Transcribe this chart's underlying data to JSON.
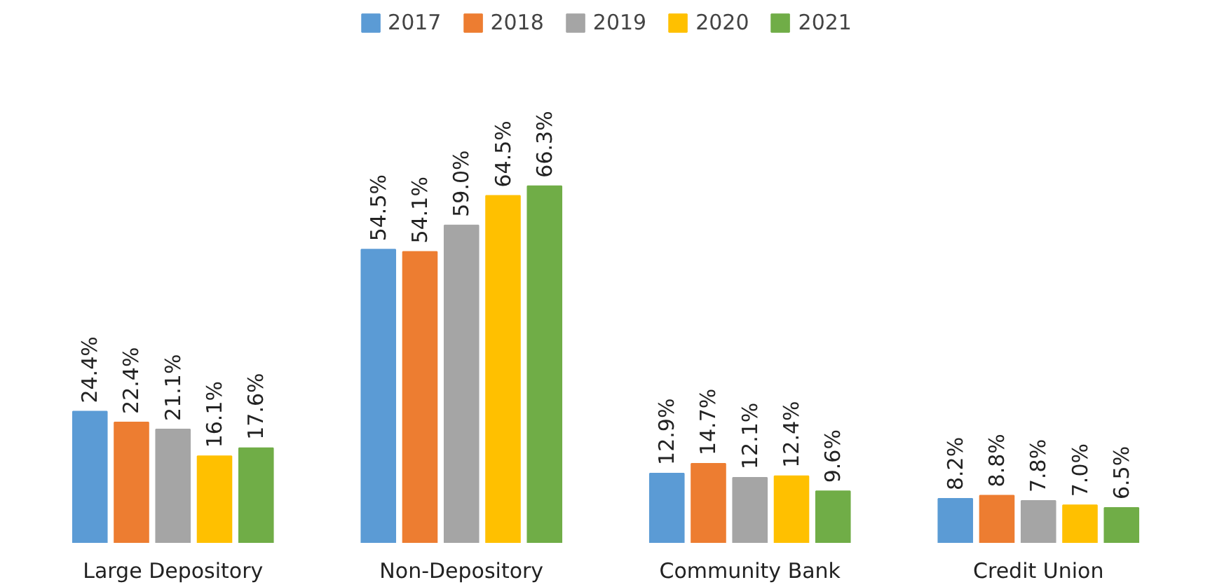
{
  "chart_data": {
    "type": "bar",
    "categories": [
      "Large Depository",
      "Non-Depository",
      "Community Bank",
      "Credit Union"
    ],
    "series": [
      {
        "name": "2017",
        "color": "#5b9bd5",
        "values": [
          24.4,
          54.5,
          12.9,
          8.2
        ],
        "value_labels": [
          "24.4%",
          "54.5%",
          "12.9%",
          "8.2%"
        ]
      },
      {
        "name": "2018",
        "color": "#ed7d31",
        "values": [
          22.4,
          54.1,
          14.7,
          8.8
        ],
        "value_labels": [
          "22.4%",
          "54.1%",
          "14.7%",
          "8.8%"
        ]
      },
      {
        "name": "2019",
        "color": "#a5a5a5",
        "values": [
          21.1,
          59.0,
          12.1,
          7.8
        ],
        "value_labels": [
          "21.1%",
          "59.0%",
          "12.1%",
          "7.8%"
        ]
      },
      {
        "name": "2020",
        "color": "#ffc000",
        "values": [
          16.1,
          64.5,
          12.4,
          7.0
        ],
        "value_labels": [
          "16.1%",
          "64.5%",
          "12.4%",
          "7.0%"
        ]
      },
      {
        "name": "2021",
        "color": "#70ad47",
        "values": [
          17.6,
          66.3,
          9.6,
          6.5
        ],
        "value_labels": [
          "17.6%",
          "66.3%",
          "9.6%",
          "6.5%"
        ]
      }
    ],
    "legend": "top"
  }
}
